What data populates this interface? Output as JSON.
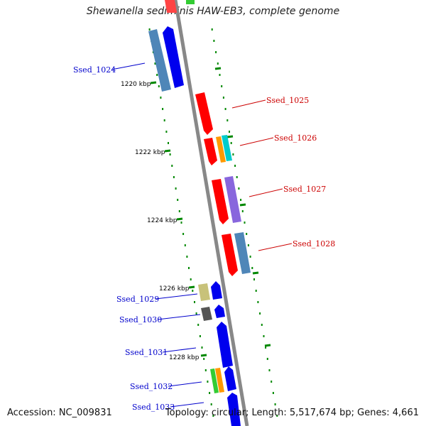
{
  "title": "Shewanella sediminis HAW-EB3, complete genome",
  "footer": {
    "accession": "Accession: NC_009831",
    "summary": "Topology: circular; Length: 5,517,674 bp; Genes: 4,661"
  },
  "colors": {
    "label_reverse": "#0000cc",
    "label_forward": "#cc0000",
    "backbone": "#888888",
    "ticks": "#008800"
  },
  "ticks": [
    "1220 kbp",
    "1222 kbp",
    "1224 kbp",
    "1226 kbp",
    "1228 kbp"
  ],
  "gene_labels_reverse": [
    "Ssed_1024",
    "Ssed_1029",
    "Ssed_1030",
    "Ssed_1031",
    "Ssed_1032",
    "Ssed_1033"
  ],
  "gene_labels_forward": [
    "Ssed_1025",
    "Ssed_1026",
    "Ssed_1027",
    "Ssed_1028"
  ]
}
